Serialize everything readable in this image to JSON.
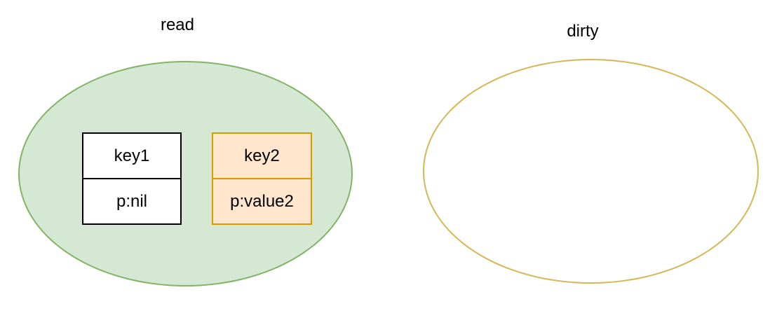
{
  "colors": {
    "read_fill": "#d5e8d4",
    "read_stroke": "#82b366",
    "dirty_stroke": "#d6b656",
    "key2_fill": "#ffe6cc",
    "key2_stroke": "#d79b00"
  },
  "read": {
    "label": "read",
    "entries": [
      {
        "key": "key1",
        "pointer": "p:nil"
      },
      {
        "key": "key2",
        "pointer": "p:value2"
      }
    ]
  },
  "dirty": {
    "label": "dirty"
  }
}
